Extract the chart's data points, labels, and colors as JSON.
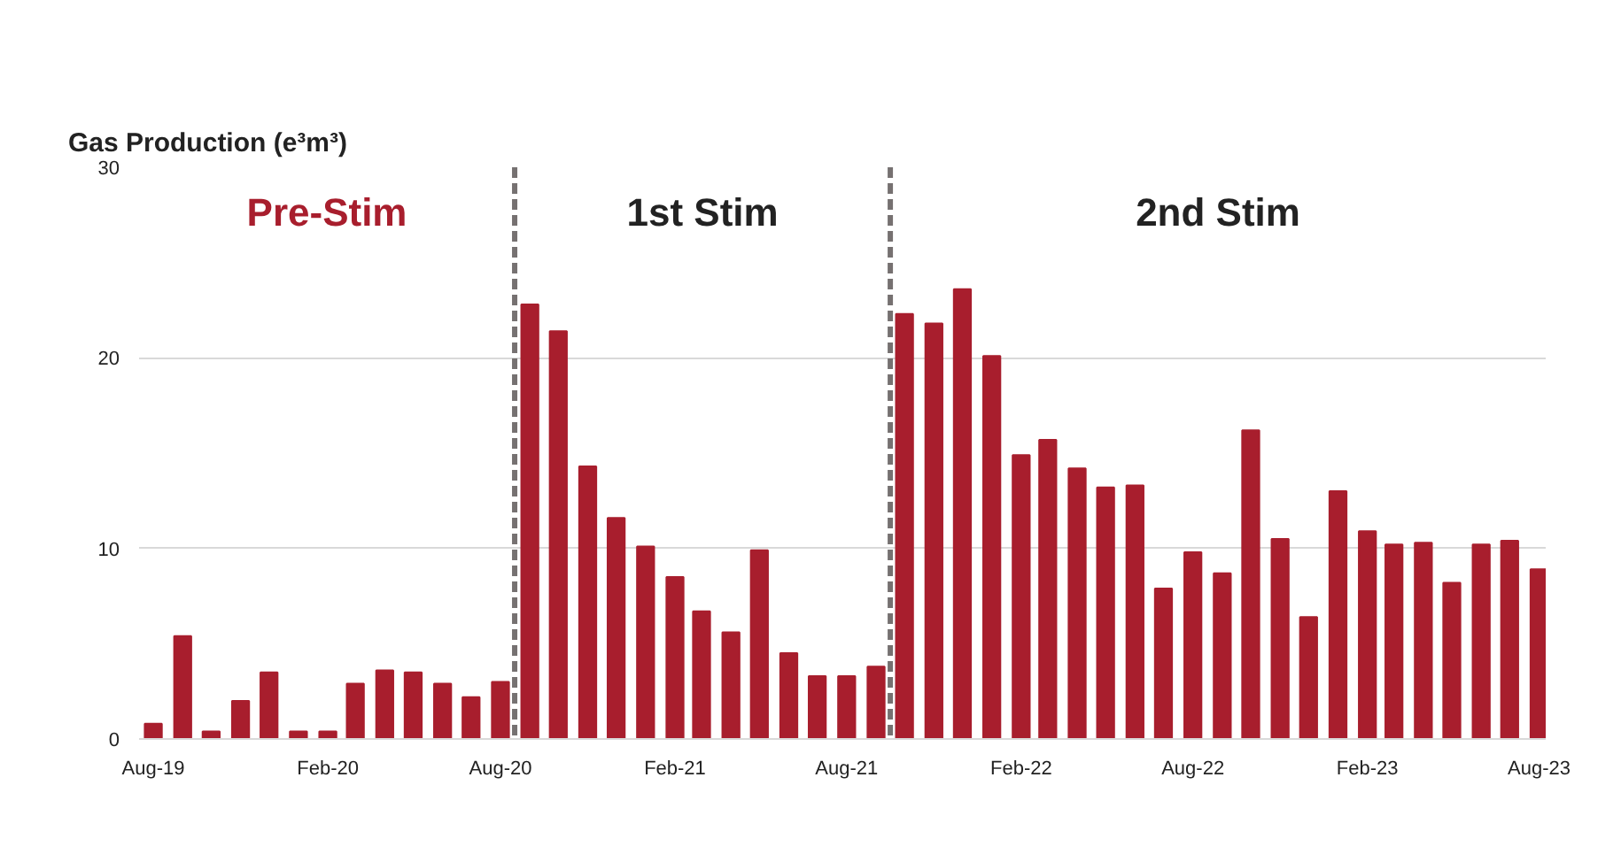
{
  "chart_data": {
    "type": "bar",
    "title": "Gas Production (e³m³)",
    "x": [
      "2019-08",
      "2019-09",
      "2019-10",
      "2019-11",
      "2019-12",
      "2020-01",
      "2020-02",
      "2020-03",
      "2020-04",
      "2020-05",
      "2020-06",
      "2020-07",
      "2020-08",
      "2020-09",
      "2020-10",
      "2020-11",
      "2020-12",
      "2021-01",
      "2021-02",
      "2021-03",
      "2021-04",
      "2021-05",
      "2021-06",
      "2021-07",
      "2021-08",
      "2021-09",
      "2021-10",
      "2021-11",
      "2021-12",
      "2022-01",
      "2022-02",
      "2022-03",
      "2022-04",
      "2022-05",
      "2022-06",
      "2022-07",
      "2022-08",
      "2022-09",
      "2022-10",
      "2022-11",
      "2022-12",
      "2023-01",
      "2023-02",
      "2023-03",
      "2023-04",
      "2023-05",
      "2023-06",
      "2023-07",
      "2023-08"
    ],
    "values": [
      0.8,
      5.4,
      0.4,
      2.0,
      3.5,
      0.4,
      0.4,
      2.9,
      3.6,
      3.5,
      2.9,
      2.2,
      3.0,
      22.8,
      21.4,
      14.3,
      11.6,
      10.1,
      8.5,
      6.7,
      5.6,
      9.9,
      4.5,
      3.3,
      3.3,
      3.8,
      22.3,
      21.8,
      23.6,
      20.1,
      14.9,
      15.7,
      14.2,
      13.2,
      13.3,
      7.9,
      9.8,
      8.7,
      16.2,
      10.5,
      6.4,
      13.0,
      10.9,
      10.2,
      10.3,
      8.2,
      10.2,
      10.4,
      8.9
    ],
    "color": "#a81e2d",
    "xlim": [
      "2019-07-17",
      "2023-08-08"
    ],
    "xticks": [
      {
        "value": "2019-08",
        "label": "Aug-19"
      },
      {
        "value": "2020-02",
        "label": "Feb-20"
      },
      {
        "value": "2020-08",
        "label": "Aug-20"
      },
      {
        "value": "2021-02",
        "label": "Feb-21"
      },
      {
        "value": "2021-08",
        "label": "Aug-21"
      },
      {
        "value": "2022-02",
        "label": "Feb-22"
      },
      {
        "value": "2022-08",
        "label": "Aug-22"
      },
      {
        "value": "2023-02",
        "label": "Feb-23"
      },
      {
        "value": "2023-08",
        "label": "Aug-23"
      }
    ],
    "ylim": [
      0,
      30
    ],
    "yticks": [
      0,
      10,
      20,
      30
    ],
    "grid": "y",
    "ref_lines": [
      {
        "axis": "x",
        "value": "2020-08-16",
        "color": "#767171",
        "line_style": "dashed"
      },
      {
        "axis": "x",
        "value": "2021-09-16",
        "color": "#767171",
        "line_style": "dashed"
      }
    ],
    "annotations": [
      "Pre-Stim",
      "1st Stim",
      "2nd Stim"
    ]
  }
}
